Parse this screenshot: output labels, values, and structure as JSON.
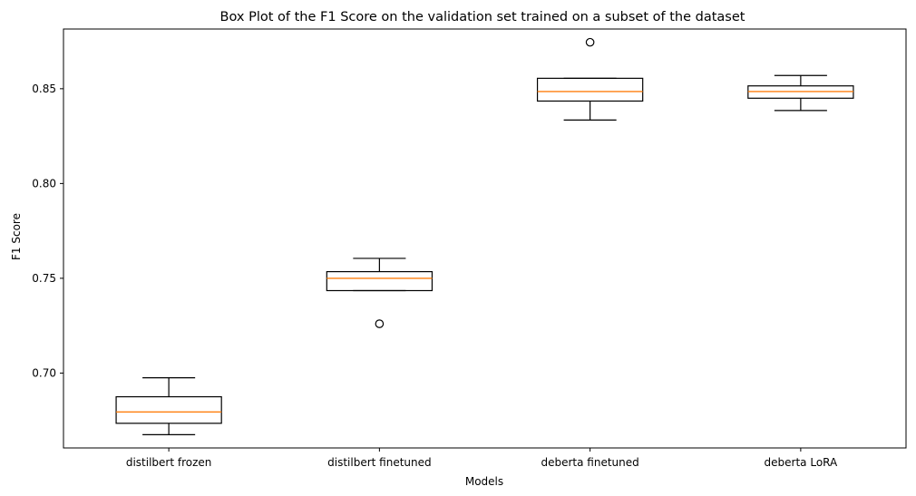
{
  "chart_data": {
    "type": "box",
    "title": "Box Plot of the F1 Score on the validation set trained on a subset of the dataset",
    "xlabel": "Models",
    "ylabel": "F1 Score",
    "ylim": [
      0.6605,
      0.8815
    ],
    "yticks": [
      0.7,
      0.75,
      0.8,
      0.85
    ],
    "ytick_labels": [
      "0.70",
      "0.75",
      "0.80",
      "0.85"
    ],
    "grid": false,
    "legend": "none",
    "categories": [
      "distilbert frozen",
      "distilbert finetuned",
      "deberta finetuned",
      "deberta LoRA"
    ],
    "boxes": [
      {
        "label": "distilbert frozen",
        "whisker_low": 0.6675,
        "q1": 0.6735,
        "median": 0.6795,
        "q3": 0.6875,
        "whisker_high": 0.6975,
        "outliers": []
      },
      {
        "label": "distilbert finetuned",
        "whisker_low": 0.7435,
        "q1": 0.7435,
        "median": 0.75,
        "q3": 0.7535,
        "whisker_high": 0.7605,
        "outliers": [
          0.726
        ]
      },
      {
        "label": "deberta finetuned",
        "whisker_low": 0.8335,
        "q1": 0.8435,
        "median": 0.8485,
        "q3": 0.8555,
        "whisker_high": 0.8555,
        "outliers": [
          0.8745
        ]
      },
      {
        "label": "deberta LoRA",
        "whisker_low": 0.8385,
        "q1": 0.845,
        "median": 0.8485,
        "q3": 0.8515,
        "whisker_high": 0.857,
        "outliers": []
      }
    ],
    "colors": {
      "box": "#000000",
      "median": "#ff7f0e",
      "axes": "#000000"
    }
  }
}
